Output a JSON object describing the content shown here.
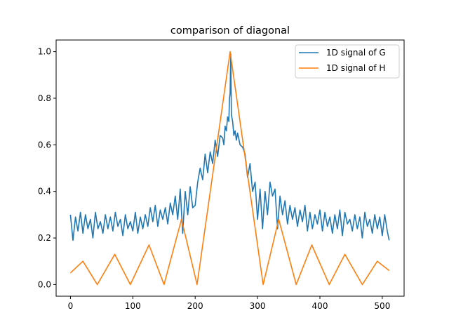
{
  "chart_data": {
    "type": "line",
    "title": "comparison of diagonal",
    "xlabel": "",
    "ylabel": "",
    "xlim": [
      -23,
      535
    ],
    "ylim": [
      -0.05,
      1.05
    ],
    "xticks": [
      0,
      100,
      200,
      300,
      400,
      500
    ],
    "yticks": [
      0.0,
      0.2,
      0.4,
      0.6,
      0.8,
      1.0
    ],
    "xtick_labels": [
      "0",
      "100",
      "200",
      "300",
      "400",
      "500"
    ],
    "ytick_labels": [
      "0.0",
      "0.2",
      "0.4",
      "0.6",
      "0.8",
      "1.0"
    ],
    "grid": false,
    "legend_position": "top-right",
    "series": [
      {
        "name": "1D signal of G",
        "color": "#1f77b4",
        "x": [
          0,
          4,
          8,
          12,
          16,
          20,
          24,
          28,
          32,
          36,
          40,
          44,
          48,
          52,
          56,
          60,
          64,
          68,
          72,
          76,
          80,
          84,
          88,
          92,
          96,
          100,
          104,
          108,
          112,
          116,
          120,
          124,
          128,
          132,
          136,
          140,
          144,
          148,
          152,
          156,
          160,
          164,
          168,
          172,
          176,
          180,
          184,
          188,
          192,
          196,
          200,
          204,
          208,
          212,
          216,
          220,
          224,
          228,
          232,
          236,
          240,
          244,
          246,
          248,
          250,
          252,
          254,
          255,
          256,
          257,
          258,
          260,
          262,
          264,
          266,
          268,
          272,
          276,
          280,
          284,
          288,
          292,
          296,
          300,
          304,
          308,
          312,
          316,
          320,
          324,
          328,
          332,
          336,
          340,
          344,
          348,
          352,
          356,
          360,
          364,
          368,
          372,
          376,
          380,
          384,
          388,
          392,
          396,
          400,
          404,
          408,
          412,
          416,
          420,
          424,
          428,
          432,
          436,
          440,
          444,
          448,
          452,
          456,
          460,
          464,
          468,
          472,
          476,
          480,
          484,
          488,
          492,
          496,
          500,
          504,
          508,
          511
        ],
        "values": [
          0.3,
          0.19,
          0.29,
          0.23,
          0.31,
          0.22,
          0.3,
          0.24,
          0.28,
          0.2,
          0.31,
          0.24,
          0.27,
          0.22,
          0.3,
          0.24,
          0.29,
          0.23,
          0.31,
          0.25,
          0.28,
          0.21,
          0.3,
          0.24,
          0.27,
          0.23,
          0.31,
          0.22,
          0.29,
          0.24,
          0.3,
          0.25,
          0.33,
          0.27,
          0.34,
          0.25,
          0.32,
          0.28,
          0.33,
          0.26,
          0.35,
          0.3,
          0.38,
          0.28,
          0.41,
          0.22,
          0.4,
          0.3,
          0.42,
          0.33,
          0.34,
          0.44,
          0.5,
          0.45,
          0.56,
          0.48,
          0.57,
          0.52,
          0.62,
          0.55,
          0.64,
          0.63,
          0.6,
          0.68,
          0.66,
          0.72,
          0.7,
          0.8,
          0.82,
          0.99,
          0.73,
          0.7,
          0.64,
          0.66,
          0.62,
          0.65,
          0.6,
          0.59,
          0.56,
          0.46,
          0.52,
          0.4,
          0.44,
          0.28,
          0.41,
          0.24,
          0.4,
          0.3,
          0.44,
          0.38,
          0.41,
          0.24,
          0.38,
          0.3,
          0.36,
          0.26,
          0.34,
          0.28,
          0.33,
          0.25,
          0.32,
          0.27,
          0.34,
          0.23,
          0.31,
          0.24,
          0.3,
          0.26,
          0.32,
          0.23,
          0.31,
          0.25,
          0.29,
          0.22,
          0.3,
          0.24,
          0.32,
          0.21,
          0.31,
          0.26,
          0.28,
          0.23,
          0.3,
          0.24,
          0.29,
          0.2,
          0.31,
          0.25,
          0.28,
          0.22,
          0.3,
          0.24,
          0.29,
          0.21,
          0.3,
          0.23,
          0.19
        ]
      },
      {
        "name": "1D signal of H",
        "color": "#ff7f0e",
        "x": [
          0,
          20,
          43,
          71,
          96,
          126,
          150,
          178,
          203,
          256,
          309,
          334,
          362,
          387,
          415,
          440,
          468,
          492,
          511
        ],
        "values": [
          0.05,
          0.1,
          0.0,
          0.13,
          0.0,
          0.17,
          0.0,
          0.28,
          0.0,
          1.0,
          0.0,
          0.28,
          0.0,
          0.17,
          0.0,
          0.13,
          0.0,
          0.1,
          0.06
        ]
      }
    ]
  }
}
